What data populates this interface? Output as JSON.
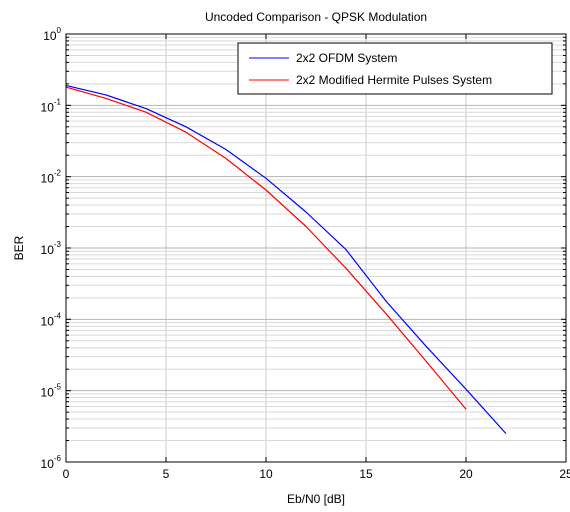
{
  "chart_data": {
    "type": "line",
    "title": "Uncoded Comparison - QPSK Modulation",
    "xlabel": "Eb/N0 [dB]",
    "ylabel": "BER",
    "xlim": [
      0,
      25
    ],
    "ylim": [
      1e-06,
      1
    ],
    "yscale": "log",
    "grid": true,
    "legend_position": "top-right",
    "x_ticks": [
      0,
      5,
      10,
      15,
      20,
      25
    ],
    "y_ticks": [
      {
        "value": 1e-06,
        "base": "10",
        "exponent": "-6"
      },
      {
        "value": 1e-05,
        "base": "10",
        "exponent": "-5"
      },
      {
        "value": 0.0001,
        "base": "10",
        "exponent": "-4"
      },
      {
        "value": 0.001,
        "base": "10",
        "exponent": "-3"
      },
      {
        "value": 0.01,
        "base": "10",
        "exponent": "-2"
      },
      {
        "value": 0.1,
        "base": "10",
        "exponent": "-1"
      },
      {
        "value": 1,
        "base": "10",
        "exponent": "0"
      }
    ],
    "series": [
      {
        "name": "2x2 OFDM System",
        "color": "#0000ff",
        "x": [
          0,
          2,
          4,
          6,
          8,
          10,
          12,
          14,
          16,
          18,
          20,
          22
        ],
        "y": [
          0.19,
          0.14,
          0.09,
          0.05,
          0.024,
          0.0095,
          0.0032,
          0.00095,
          0.00018,
          4.2e-05,
          1.05e-05,
          2.5e-06
        ]
      },
      {
        "name": "2x2 Modified Hermite Pulses System",
        "color": "#ff0000",
        "x": [
          0,
          2,
          4,
          6,
          8,
          10,
          12,
          14,
          16,
          18,
          20
        ],
        "y": [
          0.18,
          0.125,
          0.08,
          0.042,
          0.018,
          0.0065,
          0.002,
          0.00052,
          0.00012,
          2.6e-05,
          5.5e-06
        ]
      }
    ]
  }
}
